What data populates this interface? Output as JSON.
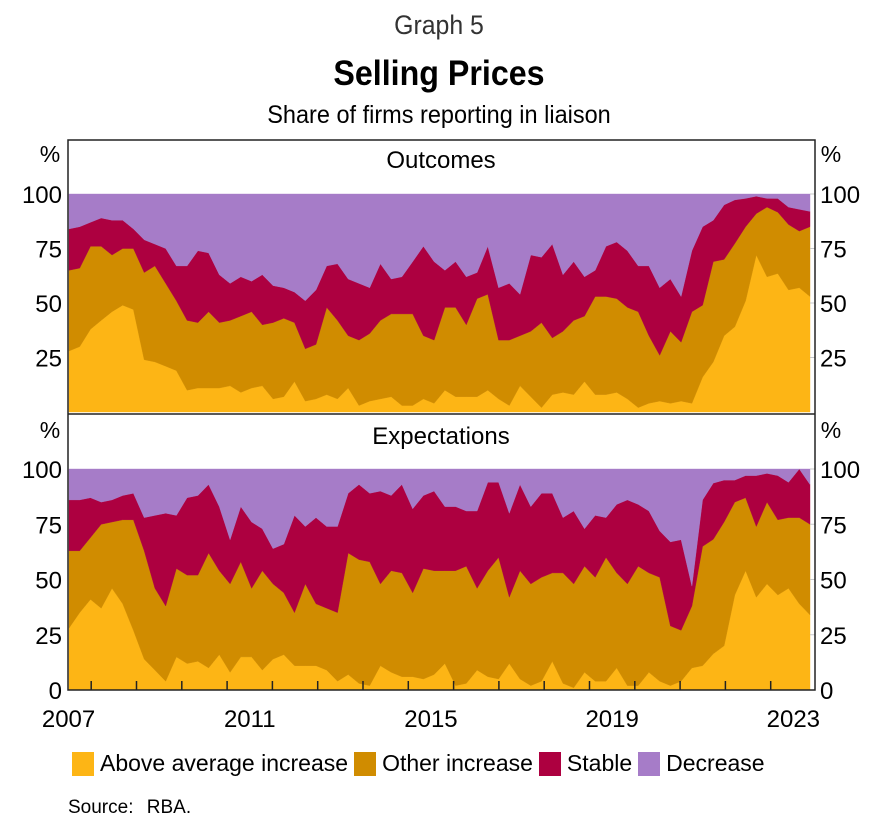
{
  "header": {
    "graph_number": "Graph 5",
    "title": "Selling Prices",
    "subtitle": "Share of firms reporting in liaison"
  },
  "source": "Source:  RBA.",
  "colors": {
    "above_average_increase": "#FDB515",
    "other_increase": "#D08C00",
    "stable": "#AD0040",
    "decrease": "#A67CC8"
  },
  "chart_data": [
    {
      "type": "area",
      "stacked": true,
      "title": "Outcomes",
      "ylabel": "%",
      "ylim": [
        0,
        100
      ],
      "yticks": [
        25,
        50,
        75,
        100
      ],
      "ytick_labels": [
        "25",
        "50",
        "75",
        "100"
      ],
      "x_start": "2007 Q3",
      "x_end": "2023 Q4",
      "frequency": "quarterly",
      "series": [
        {
          "name": "Above average increase",
          "values": [
            28,
            30,
            38,
            42,
            46,
            49,
            47,
            24,
            23,
            21,
            19,
            10,
            11,
            11,
            11,
            12,
            9,
            11,
            12,
            6,
            7,
            14,
            5,
            6,
            8,
            6,
            11,
            3,
            5,
            6,
            7,
            3,
            3,
            6,
            4,
            10,
            7,
            7,
            7,
            10,
            6,
            3,
            12,
            7,
            2,
            8,
            9,
            8,
            14,
            8,
            8,
            9,
            6,
            2,
            4,
            5,
            4,
            5,
            4,
            16,
            23,
            35,
            43,
            51,
            72,
            62,
            61,
            56,
            57,
            53
          ]
        },
        {
          "name": "Other increase",
          "values": [
            37,
            36,
            38,
            34,
            26,
            26,
            28,
            40,
            44,
            38,
            32,
            32,
            30,
            35,
            30,
            30,
            35,
            35,
            28,
            35,
            36,
            27,
            24,
            25,
            40,
            36,
            24,
            30,
            31,
            36,
            38,
            42,
            42,
            29,
            29,
            38,
            41,
            33,
            45,
            44,
            27,
            30,
            23,
            30,
            39,
            26,
            28,
            34,
            30,
            45,
            45,
            43,
            42,
            44,
            31,
            21,
            33,
            27,
            42,
            33,
            46,
            35,
            42,
            34,
            19,
            32,
            27,
            30,
            26,
            32
          ]
        },
        {
          "name": "Stable",
          "values": [
            19,
            19,
            11,
            13,
            16,
            13,
            9,
            15,
            10,
            16,
            16,
            25,
            33,
            27,
            22,
            17,
            18,
            14,
            23,
            17,
            14,
            14,
            22,
            25,
            19,
            26,
            26,
            26,
            21,
            26,
            16,
            17,
            24,
            41,
            36,
            17,
            21,
            22,
            12,
            22,
            24,
            26,
            19,
            35,
            30,
            43,
            26,
            27,
            18,
            12,
            23,
            26,
            26,
            21,
            32,
            31,
            24,
            21,
            28,
            36,
            19,
            25,
            22,
            13,
            8,
            4,
            6,
            8,
            10,
            7
          ]
        },
        {
          "name": "Decrease",
          "values": [
            16,
            15,
            13,
            11,
            12,
            12,
            16,
            21,
            23,
            25,
            33,
            33,
            26,
            27,
            37,
            41,
            38,
            40,
            37,
            42,
            43,
            45,
            49,
            44,
            33,
            32,
            39,
            41,
            43,
            32,
            39,
            38,
            31,
            24,
            31,
            35,
            31,
            38,
            36,
            24,
            43,
            41,
            46,
            28,
            29,
            23,
            37,
            31,
            38,
            35,
            24,
            22,
            26,
            33,
            33,
            43,
            39,
            47,
            26,
            15,
            12,
            5,
            3,
            2,
            1,
            2,
            2,
            6,
            7,
            8
          ]
        }
      ]
    },
    {
      "type": "area",
      "stacked": true,
      "title": "Expectations",
      "ylabel": "%",
      "ylim": [
        0,
        100
      ],
      "yticks": [
        0,
        25,
        50,
        75,
        100
      ],
      "ytick_labels": [
        "0",
        "25",
        "50",
        "75",
        "100"
      ],
      "x_start": "2007 Q3",
      "x_end": "2023 Q4",
      "frequency": "quarterly",
      "xtick_labels": [
        "2007",
        "2011",
        "2015",
        "2019",
        "2023"
      ],
      "series": [
        {
          "name": "Above average increase",
          "values": [
            28,
            35,
            41,
            37,
            46,
            39,
            27,
            14,
            9,
            4,
            15,
            12,
            13,
            10,
            16,
            8,
            15,
            15,
            9,
            14,
            16,
            11,
            11,
            11,
            9,
            4,
            7,
            3,
            2,
            11,
            8,
            6,
            6,
            5,
            7,
            12,
            2,
            3,
            9,
            6,
            5,
            12,
            5,
            2,
            4,
            13,
            3,
            1,
            8,
            4,
            4,
            10,
            2,
            2,
            8,
            4,
            2,
            4,
            10,
            11,
            18,
            20,
            43,
            54,
            42,
            48,
            43,
            46,
            39,
            34
          ]
        },
        {
          "name": "Other increase",
          "values": [
            35,
            28,
            28,
            38,
            30,
            38,
            50,
            49,
            37,
            34,
            40,
            40,
            39,
            52,
            38,
            40,
            43,
            31,
            45,
            34,
            28,
            24,
            37,
            28,
            28,
            31,
            55,
            56,
            56,
            37,
            46,
            47,
            38,
            50,
            47,
            42,
            52,
            53,
            37,
            48,
            55,
            30,
            49,
            46,
            47,
            40,
            50,
            47,
            48,
            47,
            56,
            43,
            46,
            54,
            45,
            47,
            27,
            23,
            28,
            54,
            57,
            56,
            42,
            33,
            32,
            37,
            34,
            32,
            39,
            41
          ]
        },
        {
          "name": "Stable",
          "values": [
            23,
            23,
            18,
            10,
            10,
            11,
            12,
            15,
            33,
            42,
            24,
            35,
            36,
            31,
            29,
            20,
            25,
            30,
            19,
            16,
            22,
            44,
            26,
            39,
            37,
            39,
            27,
            34,
            31,
            42,
            34,
            40,
            38,
            33,
            36,
            29,
            29,
            25,
            35,
            40,
            34,
            38,
            39,
            35,
            38,
            36,
            25,
            33,
            17,
            28,
            18,
            31,
            38,
            28,
            28,
            21,
            38,
            41,
            9,
            21,
            28,
            19,
            10,
            10,
            23,
            13,
            20,
            16,
            22,
            18
          ]
        },
        {
          "name": "Decrease",
          "values": [
            14,
            14,
            13,
            15,
            14,
            12,
            11,
            22,
            21,
            20,
            21,
            13,
            12,
            7,
            17,
            32,
            17,
            24,
            27,
            36,
            34,
            21,
            26,
            22,
            26,
            26,
            11,
            7,
            11,
            10,
            12,
            7,
            18,
            12,
            10,
            17,
            17,
            19,
            19,
            6,
            6,
            20,
            7,
            17,
            11,
            11,
            22,
            19,
            27,
            21,
            22,
            16,
            14,
            16,
            19,
            28,
            33,
            32,
            53,
            14,
            7,
            5,
            5,
            3,
            3,
            2,
            3,
            6,
            0,
            7
          ]
        }
      ]
    }
  ],
  "legend": {
    "placement": "bottom",
    "items": [
      {
        "label": "Above average increase",
        "color": "#FDB515"
      },
      {
        "label": "Other increase",
        "color": "#D08C00"
      },
      {
        "label": "Stable",
        "color": "#AD0040"
      },
      {
        "label": "Decrease",
        "color": "#A67CC8"
      }
    ]
  }
}
